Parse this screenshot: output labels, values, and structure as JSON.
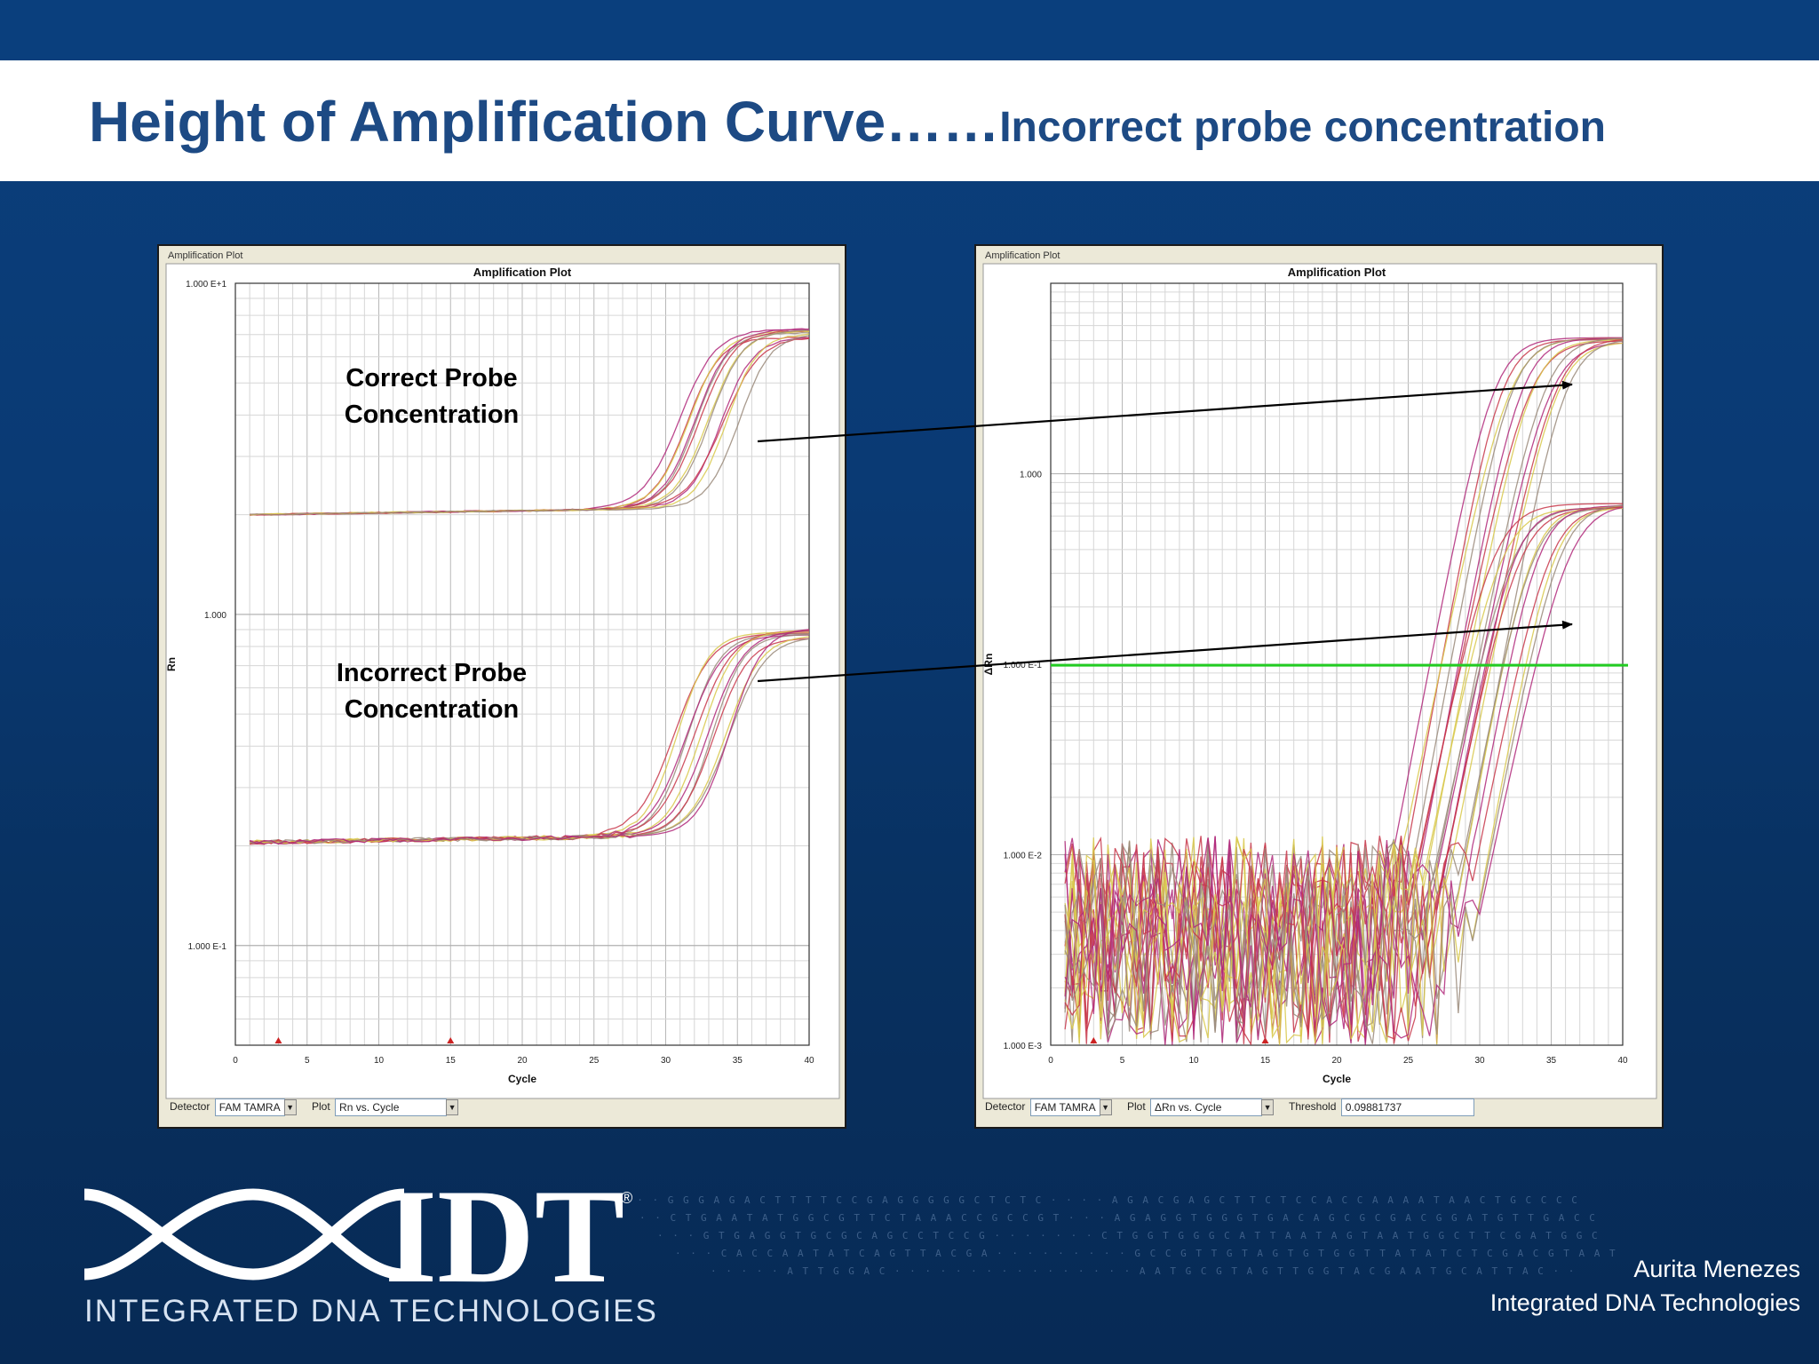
{
  "slide": {
    "title_main": "Height of Amplification Curve……",
    "title_sub": "Incorrect probe concentration",
    "author_name": "Aurita Menezes",
    "author_org": "Integrated  DNA Technologies",
    "logo_text": "IDT",
    "logo_registered": "®",
    "logo_subtitle": "INTEGRATED DNA TECHNOLOGIES",
    "annotation_correct_line1": "Correct Probe",
    "annotation_correct_line2": "Concentration",
    "annotation_incorrect_line1": "Incorrect Probe",
    "annotation_incorrect_line2": "Concentration",
    "colors": {
      "title_blue": "#1d4a84",
      "background_blue": "#0a3f7d",
      "threshold_green": "#22cc22",
      "curve_magenta": "#b0287a",
      "curve_red": "#c8374a",
      "curve_yellow": "#d8c84a",
      "curve_grey": "#9a8a7a"
    }
  },
  "chart_data": [
    {
      "type": "line",
      "window_label": "Amplification Plot",
      "title": "Amplification Plot",
      "xlabel": "Cycle",
      "ylabel": "Rn",
      "log_scale": true,
      "xlim": [
        0,
        40
      ],
      "ylim": [
        0.05,
        10
      ],
      "x_ticks": [
        "0",
        "5",
        "10",
        "15",
        "20",
        "25",
        "30",
        "35",
        "40"
      ],
      "y_ticks": [
        {
          "value": 10,
          "label": "1.000 E+1"
        },
        {
          "value": 1,
          "label": "1.000"
        },
        {
          "value": 0.1,
          "label": "1.000 E-1"
        }
      ],
      "grid": true,
      "controls": {
        "detector_label": "Detector",
        "detector_value": "FAM TAMRA",
        "plot_label": "Plot",
        "plot_value": "Rn vs. Cycle"
      },
      "series_groups": [
        {
          "group": "Correct Probe Concentration",
          "baseline": 2.0,
          "plateau": 7.2,
          "midpoint_range": [
            31.5,
            35.5
          ],
          "count": 12
        },
        {
          "group": "Incorrect Probe Concentration",
          "baseline": 0.205,
          "plateau": 0.9,
          "midpoint_range": [
            31.5,
            35.5
          ],
          "count": 12
        }
      ]
    },
    {
      "type": "line",
      "window_label": "Amplification Plot",
      "title": "Amplification Plot",
      "xlabel": "Cycle",
      "ylabel": "ΔRn",
      "log_scale": true,
      "xlim": [
        0,
        40
      ],
      "ylim": [
        0.001,
        10
      ],
      "x_ticks": [
        "0",
        "5",
        "10",
        "15",
        "20",
        "25",
        "30",
        "35",
        "40"
      ],
      "y_ticks": [
        {
          "value": 1,
          "label": "1.000"
        },
        {
          "value": 0.1,
          "label": "1.000 E-1"
        },
        {
          "value": 0.01,
          "label": "1.000 E-2"
        },
        {
          "value": 0.001,
          "label": "1.000 E-3"
        }
      ],
      "grid": true,
      "threshold": 0.09881737,
      "controls": {
        "detector_label": "Detector",
        "detector_value": "FAM TAMRA",
        "plot_label": "Plot",
        "plot_value": "ΔRn vs. Cycle",
        "threshold_label": "Threshold",
        "threshold_value": "0.09881737"
      },
      "series_groups": [
        {
          "group": "Correct Probe Concentration",
          "plateau": 5.2,
          "midpoint_range": [
            31.0,
            36.0
          ],
          "count": 12
        },
        {
          "group": "Incorrect Probe Concentration",
          "plateau": 0.7,
          "midpoint_range": [
            31.0,
            36.0
          ],
          "count": 12
        }
      ]
    }
  ]
}
